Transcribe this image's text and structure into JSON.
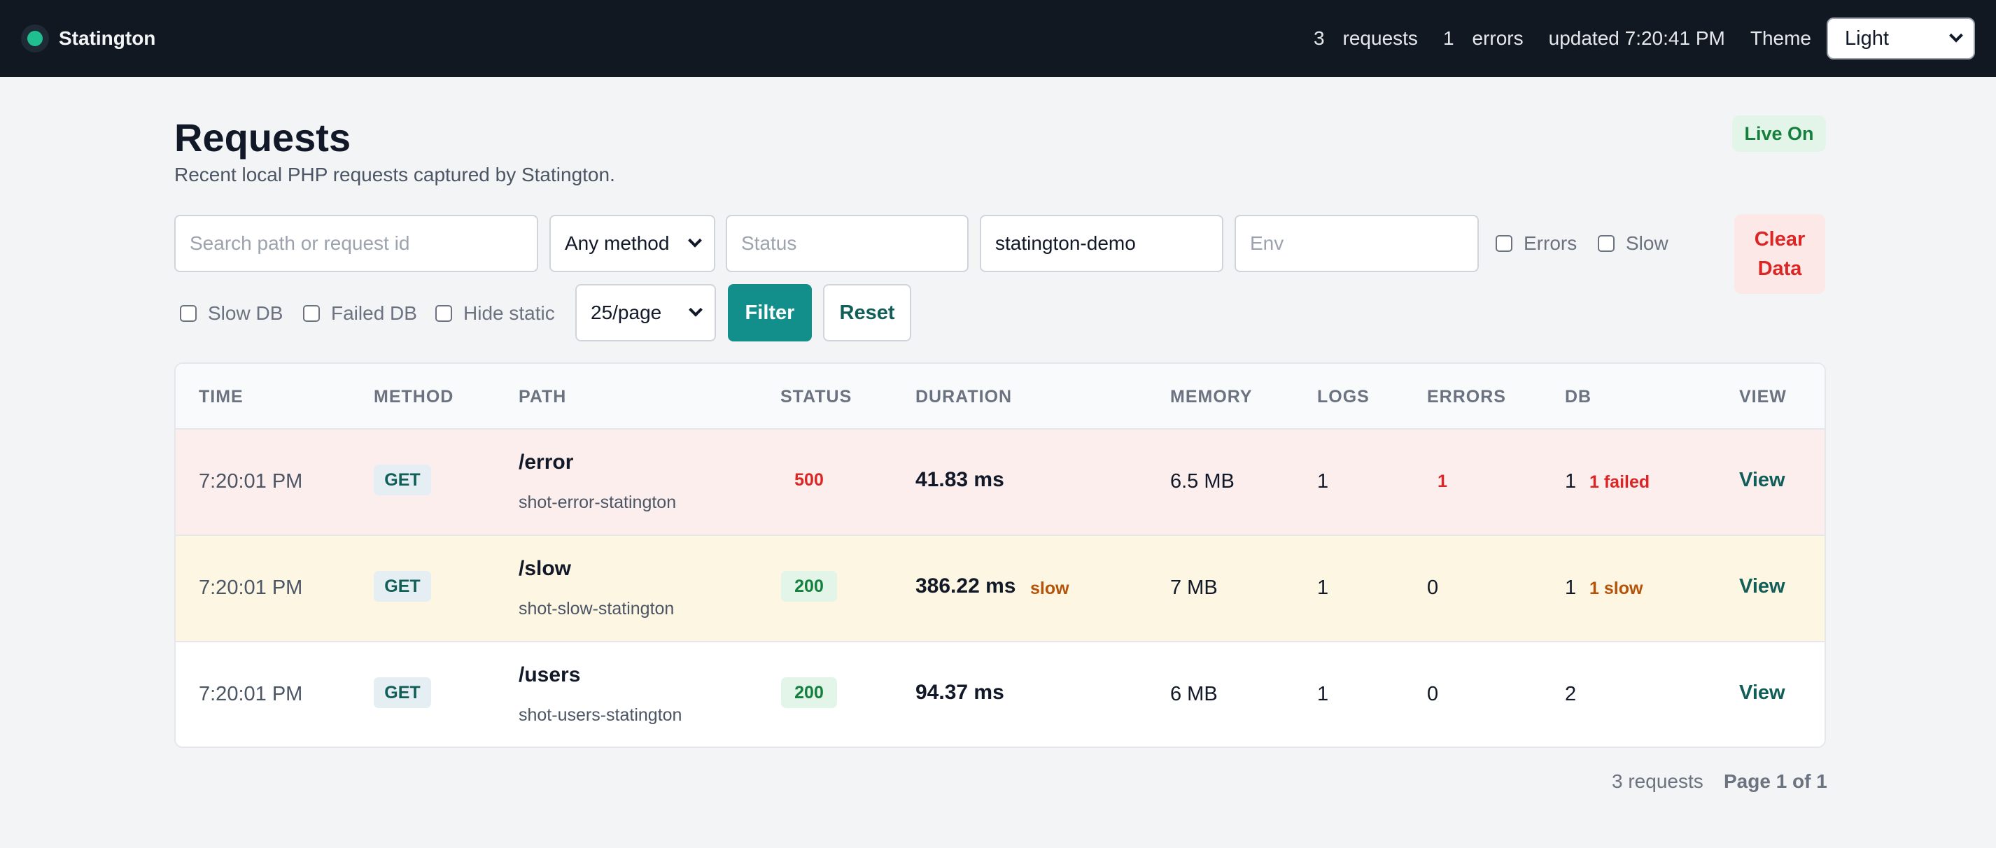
{
  "app": {
    "name": "Statington"
  },
  "topbar": {
    "request_count": "3",
    "request_label": "requests",
    "error_count": "1",
    "error_label": "errors",
    "updated": "updated 7:20:41 PM",
    "theme_label": "Theme",
    "theme_value": "Light"
  },
  "page": {
    "title": "Requests",
    "subtitle": "Recent local PHP requests captured by Statington.",
    "live_badge": "Live On"
  },
  "filters": {
    "search_placeholder": "Search path or request id",
    "method_value": "Any method",
    "status_placeholder": "Status",
    "app_value": "statington-demo",
    "env_placeholder": "Env",
    "errors_label": "Errors",
    "slow_label": "Slow",
    "clear_line1": "Clear",
    "clear_line2": "Data",
    "slow_db_label": "Slow DB",
    "failed_db_label": "Failed DB",
    "hide_static_label": "Hide static",
    "per_page_value": "25/page",
    "filter_label": "Filter",
    "reset_label": "Reset"
  },
  "table": {
    "headers": [
      "TIME",
      "METHOD",
      "PATH",
      "STATUS",
      "DURATION",
      "MEMORY",
      "LOGS",
      "ERRORS",
      "DB",
      "VIEW"
    ],
    "rows": [
      {
        "time": "7:20:01 PM",
        "method": "GET",
        "path": "/error",
        "request_id": "shot-error-statington",
        "status": "500",
        "duration": "41.83 ms",
        "duration_tag": "",
        "memory": "6.5 MB",
        "logs": "1",
        "errors": "1",
        "db": "1",
        "db_note": "1 failed",
        "view": "View"
      },
      {
        "time": "7:20:01 PM",
        "method": "GET",
        "path": "/slow",
        "request_id": "shot-slow-statington",
        "status": "200",
        "duration": "386.22 ms",
        "duration_tag": "slow",
        "memory": "7 MB",
        "logs": "1",
        "errors": "0",
        "db": "1",
        "db_note": "1 slow",
        "view": "View"
      },
      {
        "time": "7:20:01 PM",
        "method": "GET",
        "path": "/users",
        "request_id": "shot-users-statington",
        "status": "200",
        "duration": "94.37 ms",
        "duration_tag": "",
        "memory": "6 MB",
        "logs": "1",
        "errors": "0",
        "db": "2",
        "db_note": "",
        "view": "View"
      }
    ]
  },
  "footer": {
    "count": "3 requests",
    "page": "Page 1 of 1"
  },
  "colors": {
    "accent": "#128f8b",
    "error": "#dc2626",
    "success": "#15803d",
    "warning": "#b45309",
    "topbar": "#111822"
  }
}
